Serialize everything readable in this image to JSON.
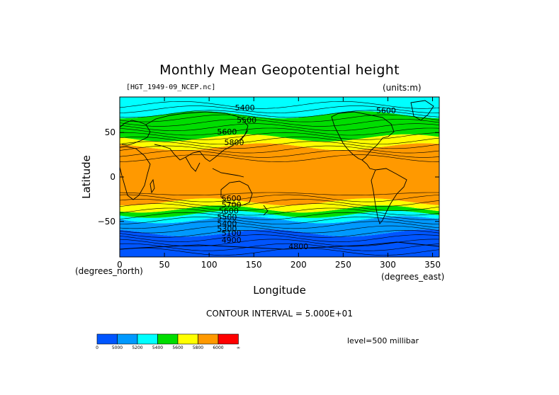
{
  "chart_data": {
    "type": "heatmap",
    "title": "Monthly Mean Geopotential height",
    "subtitle_left": "[HGT_1949-09_NCEP.nc]",
    "subtitle_right": "(units:m)",
    "xlabel": "Longitude",
    "xunit": "(degrees_east)",
    "ylabel": "Latitude",
    "yunit": "(degrees_north)",
    "xlim": [
      0,
      357.5
    ],
    "ylim": [
      -90,
      90
    ],
    "xticks": [
      0,
      50,
      100,
      150,
      200,
      250,
      300,
      350
    ],
    "xtick_labels": [
      "0",
      "50",
      "100",
      "150",
      "200",
      "250",
      "300",
      "350"
    ],
    "yticks": [
      50,
      0,
      -50
    ],
    "ytick_labels": [
      "50",
      "0",
      "−50"
    ],
    "contour_interval_text": "CONTOUR INTERVAL = 5.000E+01",
    "level_text": "level=500 millibar",
    "contour_labels": [
      {
        "text": "5400",
        "lon": 140,
        "lat": 78
      },
      {
        "text": "5500",
        "lon": 142,
        "lat": 64
      },
      {
        "text": "5600",
        "lon": 120,
        "lat": 51
      },
      {
        "text": "5600",
        "lon": 298,
        "lat": 75
      },
      {
        "text": "5800",
        "lon": 128,
        "lat": 39
      },
      {
        "text": "5600",
        "lon": 125,
        "lat": -24
      },
      {
        "text": "5700",
        "lon": 125,
        "lat": -31
      },
      {
        "text": "5600",
        "lon": 122,
        "lat": -38
      },
      {
        "text": "5500",
        "lon": 120,
        "lat": -45
      },
      {
        "text": "5400",
        "lon": 120,
        "lat": -52
      },
      {
        "text": "5300",
        "lon": 120,
        "lat": -58
      },
      {
        "text": "5100",
        "lon": 125,
        "lat": -63
      },
      {
        "text": "4900",
        "lon": 125,
        "lat": -71
      },
      {
        "text": "4800",
        "lon": 200,
        "lat": -78
      }
    ],
    "colorbar": {
      "labels": [
        "0",
        "5000",
        "5200",
        "5400",
        "5600",
        "5800",
        "6000",
        "∞"
      ],
      "colors": [
        "#0055ff",
        "#0099ff",
        "#00ffff",
        "#00dd00",
        "#ffff00",
        "#ff9900",
        "#ff0000"
      ]
    },
    "bands": [
      {
        "lat_min": -90,
        "lat_max": -63,
        "color": "#0055ff"
      },
      {
        "lat_min": -63,
        "lat_max": -48,
        "color": "#0099ff"
      },
      {
        "lat_min": -48,
        "lat_max": -42,
        "color": "#00ffff"
      },
      {
        "lat_min": -42,
        "lat_max": -36,
        "color": "#00dd00"
      },
      {
        "lat_min": -36,
        "lat_max": -28,
        "color": "#ffff00"
      },
      {
        "lat_min": -28,
        "lat_max": 34,
        "color": "#ff9900"
      },
      {
        "lat_min": 34,
        "lat_max": 44,
        "color": "#ffff00"
      },
      {
        "lat_min": 44,
        "lat_max": 70,
        "color": "#00dd00"
      },
      {
        "lat_min": 70,
        "lat_max": 90,
        "color": "#00ffff"
      }
    ]
  }
}
